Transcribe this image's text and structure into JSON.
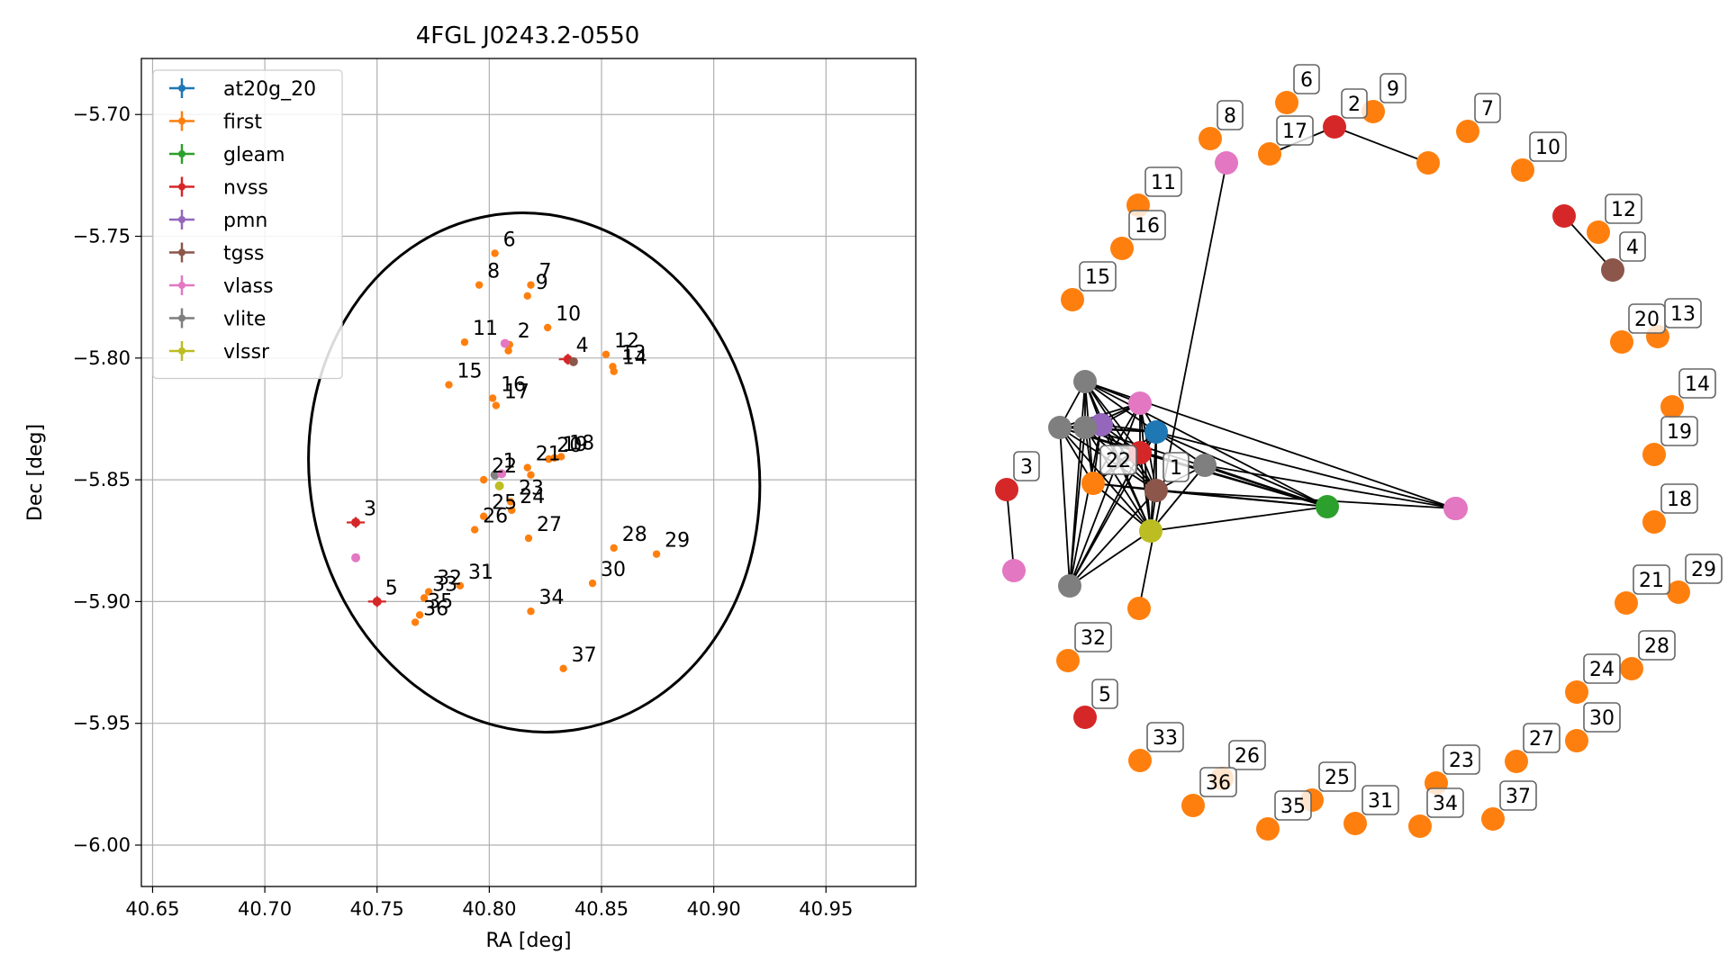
{
  "colors": {
    "at20g_20": "#1f77b4",
    "first": "#ff7f0e",
    "gleam": "#2ca02c",
    "nvss": "#d62728",
    "pmn": "#9467bd",
    "tgss": "#8c564b",
    "vlass": "#e377c2",
    "vlite": "#7f7f7f",
    "vlssr": "#bcbd22"
  },
  "chart_data": [
    {
      "type": "scatter",
      "title": "4FGL J0243.2-0550",
      "xlabel": "RA [deg]",
      "ylabel": "Dec [deg]",
      "xlim": [
        40.645,
        40.99
      ],
      "ylim": [
        -6.017,
        -5.677
      ],
      "xticks": [
        "40.65",
        "40.70",
        "40.75",
        "40.80",
        "40.85",
        "40.90",
        "40.95"
      ],
      "yticks": [
        "-5.70",
        "-5.75",
        "-5.80",
        "-5.85",
        "-5.90",
        "-5.95",
        "-6.00"
      ],
      "grid": true,
      "legend_position": "top-left",
      "legend": [
        "at20g_20",
        "first",
        "gleam",
        "nvss",
        "pmn",
        "tgss",
        "vlass",
        "vlite",
        "vlssr"
      ],
      "ellipse": {
        "center": [
          40.82,
          -5.847
        ],
        "width_ra": 0.2,
        "height_dec": 0.214,
        "tilt_deg": -10
      },
      "points": [
        {
          "s": "first",
          "x": 40.8025,
          "y": -5.757,
          "label": "6"
        },
        {
          "s": "first",
          "x": 40.7955,
          "y": -5.77,
          "label": "8"
        },
        {
          "s": "first",
          "x": 40.8185,
          "y": -5.77,
          "label": "7"
        },
        {
          "s": "first",
          "x": 40.817,
          "y": -5.7745,
          "label": "9"
        },
        {
          "s": "first",
          "x": 40.826,
          "y": -5.7875,
          "label": "10"
        },
        {
          "s": "first",
          "x": 40.789,
          "y": -5.7935,
          "label": "11"
        },
        {
          "s": "first",
          "x": 40.809,
          "y": -5.7945,
          "label": "2"
        },
        {
          "s": "first",
          "x": 40.8085,
          "y": -5.797,
          "label": ""
        },
        {
          "s": "vlass",
          "x": 40.807,
          "y": -5.794,
          "label": ""
        },
        {
          "s": "nvss",
          "x": 40.835,
          "y": -5.8005,
          "label": "4"
        },
        {
          "s": "tgss",
          "x": 40.8375,
          "y": -5.8015,
          "label": ""
        },
        {
          "s": "first",
          "x": 40.852,
          "y": -5.7985,
          "label": "12"
        },
        {
          "s": "first",
          "x": 40.855,
          "y": -5.8035,
          "label": "13"
        },
        {
          "s": "first",
          "x": 40.8555,
          "y": -5.8055,
          "label": "14"
        },
        {
          "s": "first",
          "x": 40.782,
          "y": -5.811,
          "label": "15"
        },
        {
          "s": "first",
          "x": 40.8015,
          "y": -5.8165,
          "label": "16"
        },
        {
          "s": "first",
          "x": 40.803,
          "y": -5.8195,
          "label": "17"
        },
        {
          "s": "first",
          "x": 40.832,
          "y": -5.8405,
          "label": "18"
        },
        {
          "s": "first",
          "x": 40.829,
          "y": -5.841,
          "label": "19"
        },
        {
          "s": "first",
          "x": 40.8265,
          "y": -5.8415,
          "label": "20"
        },
        {
          "s": "first",
          "x": 40.817,
          "y": -5.845,
          "label": "21"
        },
        {
          "s": "first",
          "x": 40.8185,
          "y": -5.848,
          "label": ""
        },
        {
          "s": "vlite",
          "x": 40.8025,
          "y": -5.848,
          "label": "1"
        },
        {
          "s": "vlass",
          "x": 40.8055,
          "y": -5.8475,
          "label": ""
        },
        {
          "s": "first",
          "x": 40.7975,
          "y": -5.85,
          "label": "22"
        },
        {
          "s": "vlssr",
          "x": 40.8045,
          "y": -5.8525,
          "label": ""
        },
        {
          "s": "first",
          "x": 40.8095,
          "y": -5.859,
          "label": "23"
        },
        {
          "s": "first",
          "x": 40.81,
          "y": -5.8625,
          "label": "24"
        },
        {
          "s": "first",
          "x": 40.7975,
          "y": -5.865,
          "label": "25"
        },
        {
          "s": "first",
          "x": 40.7935,
          "y": -5.8705,
          "label": "26"
        },
        {
          "s": "first",
          "x": 40.8175,
          "y": -5.874,
          "label": "27"
        },
        {
          "s": "first",
          "x": 40.8555,
          "y": -5.878,
          "label": "28"
        },
        {
          "s": "first",
          "x": 40.8745,
          "y": -5.8805,
          "label": "29"
        },
        {
          "s": "nvss",
          "x": 40.7405,
          "y": -5.8675,
          "label": "3"
        },
        {
          "s": "vlass",
          "x": 40.7405,
          "y": -5.882,
          "label": ""
        },
        {
          "s": "first",
          "x": 40.846,
          "y": -5.8925,
          "label": "30"
        },
        {
          "s": "first",
          "x": 40.787,
          "y": -5.8935,
          "label": "31"
        },
        {
          "s": "first",
          "x": 40.773,
          "y": -5.896,
          "label": "32"
        },
        {
          "s": "first",
          "x": 40.771,
          "y": -5.8985,
          "label": "33"
        },
        {
          "s": "first",
          "x": 40.769,
          "y": -5.9055,
          "label": "35"
        },
        {
          "s": "first",
          "x": 40.767,
          "y": -5.9085,
          "label": "36"
        },
        {
          "s": "nvss",
          "x": 40.75,
          "y": -5.9,
          "label": "5"
        },
        {
          "s": "first",
          "x": 40.8185,
          "y": -5.904,
          "label": "34"
        },
        {
          "s": "first",
          "x": 40.833,
          "y": -5.9275,
          "label": "37"
        }
      ]
    },
    {
      "type": "network",
      "edges": [
        [
          0,
          1
        ],
        [
          0,
          2
        ],
        [
          0,
          3
        ],
        [
          0,
          4
        ],
        [
          0,
          5
        ],
        [
          0,
          6
        ],
        [
          0,
          7
        ],
        [
          0,
          8
        ],
        [
          0,
          9
        ],
        [
          0,
          10
        ],
        [
          0,
          11
        ],
        [
          0,
          12
        ],
        [
          0,
          13
        ],
        [
          1,
          2
        ],
        [
          1,
          3
        ],
        [
          1,
          4
        ],
        [
          1,
          5
        ],
        [
          1,
          6
        ],
        [
          1,
          7
        ],
        [
          1,
          8
        ],
        [
          1,
          9
        ],
        [
          1,
          10
        ],
        [
          1,
          11
        ],
        [
          2,
          3
        ],
        [
          2,
          4
        ],
        [
          2,
          5
        ],
        [
          2,
          6
        ],
        [
          2,
          7
        ],
        [
          2,
          8
        ],
        [
          2,
          9
        ],
        [
          2,
          10
        ],
        [
          2,
          11
        ],
        [
          2,
          12
        ],
        [
          2,
          13
        ],
        [
          3,
          4
        ],
        [
          3,
          5
        ],
        [
          3,
          6
        ],
        [
          3,
          7
        ],
        [
          3,
          8
        ],
        [
          3,
          9
        ],
        [
          3,
          10
        ],
        [
          4,
          5
        ],
        [
          4,
          6
        ],
        [
          4,
          7
        ],
        [
          4,
          8
        ],
        [
          4,
          9
        ],
        [
          4,
          10
        ],
        [
          4,
          11
        ],
        [
          5,
          6
        ],
        [
          5,
          7
        ],
        [
          5,
          8
        ],
        [
          5,
          9
        ],
        [
          5,
          10
        ],
        [
          5,
          11
        ],
        [
          5,
          12
        ],
        [
          6,
          7
        ],
        [
          6,
          8
        ],
        [
          6,
          9
        ],
        [
          6,
          11
        ],
        [
          7,
          8
        ],
        [
          7,
          9
        ],
        [
          7,
          10
        ],
        [
          7,
          11
        ],
        [
          8,
          9
        ],
        [
          8,
          10
        ],
        [
          9,
          10
        ],
        [
          9,
          11
        ],
        [
          9,
          13
        ],
        [
          11,
          12
        ],
        [
          12,
          13
        ],
        [
          14,
          15
        ],
        [
          16,
          17
        ],
        [
          18,
          19
        ],
        [
          18,
          20
        ],
        [
          21,
          22
        ]
      ],
      "nodes": [
        {
          "s": "tgss",
          "label": "1"
        },
        {
          "s": "nvss",
          "label": ""
        },
        {
          "s": "at20g_20",
          "label": ""
        },
        {
          "s": "pmn",
          "label": ""
        },
        {
          "s": "vlite",
          "label": ""
        },
        {
          "s": "vlssr",
          "label": ""
        },
        {
          "s": "first",
          "label": "22"
        },
        {
          "s": "vlite",
          "label": ""
        },
        {
          "s": "vlass",
          "label": ""
        },
        {
          "s": "vlite",
          "label": ""
        },
        {
          "s": "vlite",
          "label": ""
        },
        {
          "s": "gleam",
          "label": ""
        },
        {
          "s": "vlite",
          "label": ""
        },
        {
          "s": "vlass",
          "label": ""
        },
        {
          "s": "nvss",
          "label": "3"
        },
        {
          "s": "vlass",
          "label": ""
        },
        {
          "s": "nvss",
          "label": ""
        },
        {
          "s": "tgss",
          "label": "4"
        },
        {
          "s": "nvss",
          "label": "2"
        },
        {
          "s": "first",
          "label": "17"
        },
        {
          "s": "first",
          "label": ""
        },
        {
          "s": "vlass",
          "label": ""
        },
        {
          "s": "first",
          "label": ""
        },
        {
          "s": "vlass",
          "label": ""
        },
        {
          "s": "first",
          "label": "6"
        },
        {
          "s": "first",
          "label": "9"
        },
        {
          "s": "first",
          "label": "8"
        },
        {
          "s": "first",
          "label": "7"
        },
        {
          "s": "first",
          "label": "10"
        },
        {
          "s": "first",
          "label": "11"
        },
        {
          "s": "first",
          "label": "16"
        },
        {
          "s": "first",
          "label": "15"
        },
        {
          "s": "first",
          "label": "12"
        },
        {
          "s": "first",
          "label": "20"
        },
        {
          "s": "first",
          "label": "13"
        },
        {
          "s": "first",
          "label": "14"
        },
        {
          "s": "first",
          "label": "19"
        },
        {
          "s": "first",
          "label": "18"
        },
        {
          "s": "first",
          "label": "29"
        },
        {
          "s": "first",
          "label": "21"
        },
        {
          "s": "first",
          "label": "28"
        },
        {
          "s": "first",
          "label": "24"
        },
        {
          "s": "first",
          "label": "30"
        },
        {
          "s": "first",
          "label": "27"
        },
        {
          "s": "first",
          "label": "37"
        },
        {
          "s": "first",
          "label": "23"
        },
        {
          "s": "first",
          "label": "34"
        },
        {
          "s": "first",
          "label": "31"
        },
        {
          "s": "first",
          "label": "25"
        },
        {
          "s": "first",
          "label": "35"
        },
        {
          "s": "first",
          "label": "26"
        },
        {
          "s": "first",
          "label": "36"
        },
        {
          "s": "first",
          "label": "33"
        },
        {
          "s": "nvss",
          "label": "5"
        },
        {
          "s": "first",
          "label": "32"
        }
      ]
    }
  ]
}
